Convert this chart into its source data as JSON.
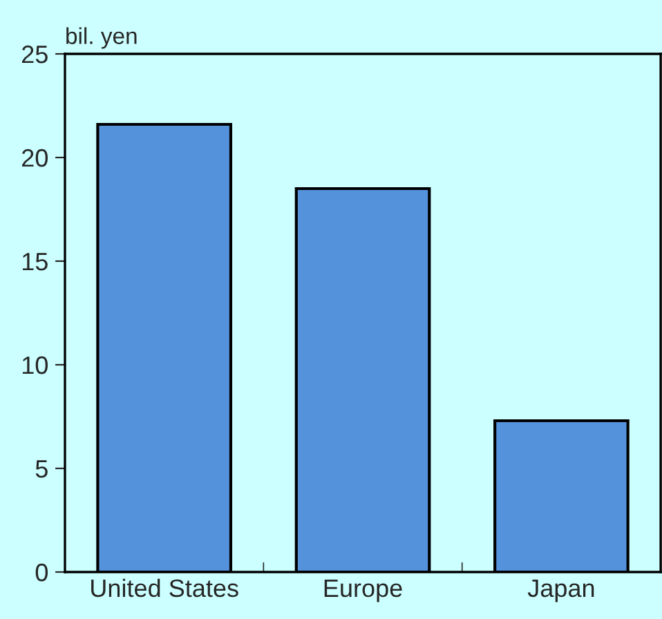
{
  "chart_data": {
    "type": "bar",
    "ylabel": "bil. yen",
    "categories": [
      "United States",
      "Europe",
      "Japan"
    ],
    "values": [
      21.6,
      18.5,
      7.3
    ],
    "color": "#5592dc",
    "ylim": [
      0,
      25
    ],
    "yticks": [
      0,
      5,
      10,
      15,
      20,
      25
    ],
    "grid": false,
    "legend": false
  }
}
